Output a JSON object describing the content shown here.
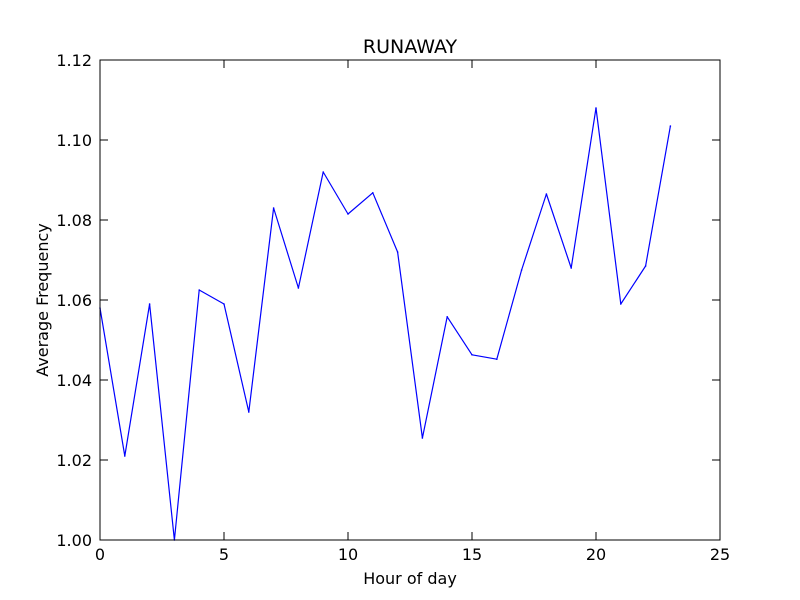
{
  "chart_data": {
    "type": "line",
    "title": "RUNAWAY",
    "xlabel": "Hour of day",
    "ylabel": "Average Frequency",
    "xlim": [
      0,
      25
    ],
    "ylim": [
      1.0,
      1.12
    ],
    "xticks": [
      0,
      5,
      10,
      15,
      20,
      25
    ],
    "xtick_labels": [
      "0",
      "5",
      "10",
      "15",
      "20",
      "25"
    ],
    "yticks": [
      1.0,
      1.02,
      1.04,
      1.06,
      1.08,
      1.1,
      1.12
    ],
    "ytick_labels": [
      "1.00",
      "1.02",
      "1.04",
      "1.06",
      "1.08",
      "1.10",
      "1.12"
    ],
    "grid": false,
    "legend": "none",
    "series": [
      {
        "color": "#0000ff",
        "x": [
          0,
          1,
          2,
          3,
          4,
          5,
          6,
          7,
          8,
          9,
          10,
          11,
          12,
          13,
          14,
          15,
          16,
          17,
          18,
          19,
          20,
          21,
          22,
          23
        ],
        "values": [
          1.058,
          1.021,
          1.059,
          1.0,
          1.0625,
          1.059,
          1.032,
          1.083,
          1.063,
          1.092,
          1.0815,
          1.0868,
          1.072,
          1.0255,
          1.0558,
          1.0463,
          1.0452,
          1.0675,
          1.0865,
          1.068,
          1.108,
          1.059,
          1.0685,
          1.1035
        ]
      }
    ]
  }
}
